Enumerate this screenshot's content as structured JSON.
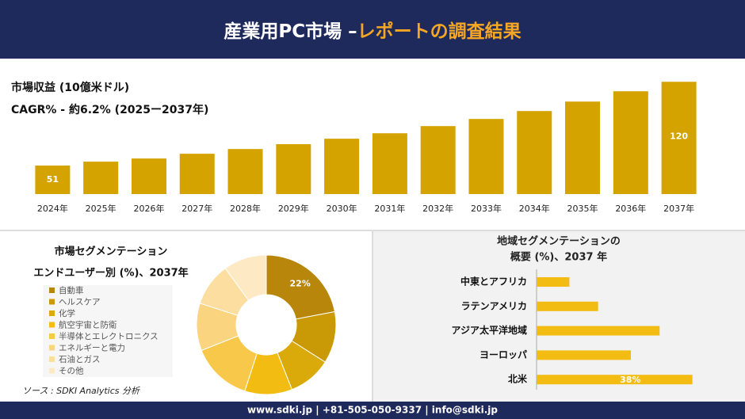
{
  "header": {
    "title_main": "産業用PC市場 –",
    "title_highlight": "レポートの調査結果"
  },
  "chart_data": [
    {
      "type": "bar",
      "subtitle": "市場収益 (10億米ドル)",
      "cagr": "CAGR% - 約6.2% (2025ー2037年)",
      "categories": [
        "2024年",
        "2025年",
        "2026年",
        "2027年",
        "2028年",
        "2029年",
        "2030年",
        "2031年",
        "2032年",
        "2033年",
        "2034年",
        "2035年",
        "2036年",
        "2037年"
      ],
      "values": [
        51,
        54.2,
        56.8,
        60.7,
        64.6,
        68.6,
        73.1,
        77.6,
        83.5,
        89.4,
        95.9,
        103.7,
        112.2,
        120
      ],
      "color": "#d4a300",
      "ylim": [
        27.5,
        128
      ]
    },
    {
      "type": "pie",
      "title_lines": [
        "市場セグメンテーション",
        "エンドユーザー別 (%)、2037年"
      ],
      "categories": [
        "自動車",
        "ヘルスケア",
        "化学",
        "航空宇宙と防衛",
        "半導体とエレクトロニクス",
        "エネルギーと電力",
        "石油とガス",
        "その他"
      ],
      "values": [
        22,
        12,
        10,
        11,
        14,
        11,
        10,
        10
      ],
      "value_labels": [
        "22%",
        null,
        null,
        null,
        null,
        null,
        null,
        null
      ],
      "colors": [
        "#b8860b",
        "#c99a06",
        "#d9aa0a",
        "#f2bc12",
        "#f8c84a",
        "#fad47e",
        "#fbdea0",
        "#fde9c4"
      ],
      "source": "ソース : SDKI Analytics 分析"
    },
    {
      "type": "hbar",
      "title_lines": [
        "地域セグメンテーションの",
        "概要 (%)、2037 年"
      ],
      "categories": [
        "中東とアフリカ",
        "ラテンアメリカ",
        "アジア太平洋地域",
        "ヨーロッパ",
        "北米"
      ],
      "values": [
        8,
        15,
        30,
        23,
        38
      ],
      "value_labels": [
        null,
        null,
        null,
        null,
        "38%"
      ],
      "color": "#f2bc12",
      "xlim": [
        0,
        40
      ]
    }
  ],
  "footer": {
    "text": "www.sdki.jp | +81-505-050-9337 | info@sdki.jp"
  }
}
